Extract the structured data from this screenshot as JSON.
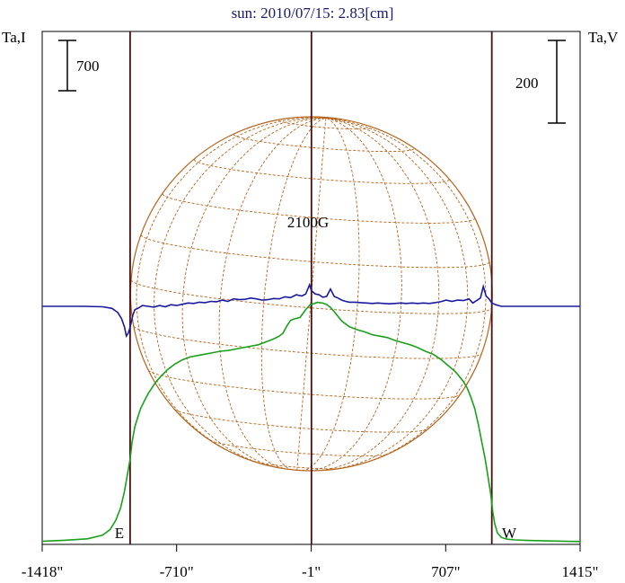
{
  "chart_data": {
    "type": "line",
    "title": "sun: 2010/07/15: 2.83[cm]",
    "left_axis_label": "Ta,I",
    "right_axis_label": "Ta,V",
    "left_scale_bar_label": "700",
    "right_scale_bar_label": "200",
    "field_label": "2100G",
    "east_label": "E",
    "west_label": "W",
    "x_tick_labels": [
      "-1418\"",
      "-710\"",
      "-1\"",
      "707\"",
      "1415\""
    ],
    "x_ticks": [
      -1418,
      -710,
      -1,
      707,
      1415
    ],
    "xlim": [
      -1418,
      1415
    ],
    "limb_arcsec": [
      -955,
      950
    ],
    "grid": false,
    "colors": {
      "intensity": "#1aa01a",
      "polarization": "#1a1aa0",
      "disk": "#b5651d",
      "limb_lines": "#4a1010",
      "axis": "#000000"
    },
    "series": [
      {
        "name": "Ta,I",
        "x": [
          -1418,
          -1300,
          -1180,
          -1100,
          -1060,
          -1030,
          -1005,
          -985,
          -970,
          -955,
          -945,
          -930,
          -915,
          -900,
          -880,
          -860,
          -840,
          -820,
          -800,
          -760,
          -720,
          -680,
          -640,
          -600,
          -560,
          -520,
          -480,
          -440,
          -400,
          -360,
          -320,
          -280,
          -240,
          -200,
          -170,
          -150,
          -130,
          -110,
          -90,
          -60,
          -30,
          -5,
          10,
          30,
          60,
          80,
          100,
          120,
          160,
          200,
          240,
          280,
          320,
          360,
          400,
          440,
          480,
          520,
          560,
          600,
          640,
          680,
          720,
          760,
          800,
          820,
          840,
          860,
          880,
          900,
          915,
          930,
          945,
          955,
          965,
          980,
          1000,
          1030,
          1070,
          1120,
          1180,
          1260,
          1340,
          1415
        ],
        "y": [
          5,
          20,
          40,
          90,
          170,
          300,
          470,
          700,
          920,
          1150,
          1380,
          1600,
          1730,
          1850,
          1960,
          2060,
          2140,
          2220,
          2280,
          2390,
          2470,
          2530,
          2570,
          2590,
          2610,
          2630,
          2650,
          2660,
          2680,
          2700,
          2720,
          2740,
          2780,
          2820,
          2860,
          2900,
          3000,
          3080,
          3100,
          3120,
          3230,
          3300,
          3310,
          3330,
          3320,
          3300,
          3260,
          3200,
          3070,
          2990,
          2950,
          2920,
          2880,
          2860,
          2840,
          2800,
          2770,
          2740,
          2700,
          2650,
          2610,
          2540,
          2450,
          2360,
          2230,
          2140,
          2010,
          1850,
          1620,
          1350,
          1150,
          900,
          650,
          420,
          250,
          120,
          60,
          35,
          25,
          20,
          15,
          10,
          5,
          3
        ]
      },
      {
        "name": "Ta,V",
        "x": [
          -1418,
          -1200,
          -1100,
          -1050,
          -1020,
          -1000,
          -985,
          -975,
          -965,
          -958,
          -950,
          -940,
          -930,
          -910,
          -890,
          -860,
          -830,
          -800,
          -770,
          -740,
          -710,
          -680,
          -650,
          -620,
          -590,
          -560,
          -530,
          -500,
          -470,
          -440,
          -410,
          -380,
          -350,
          -320,
          -290,
          -260,
          -230,
          -200,
          -170,
          -140,
          -110,
          -80,
          -50,
          -30,
          -10,
          0,
          20,
          40,
          60,
          80,
          100,
          120,
          140,
          160,
          180,
          200,
          230,
          260,
          290,
          320,
          350,
          380,
          410,
          440,
          470,
          500,
          530,
          560,
          590,
          620,
          650,
          680,
          710,
          740,
          770,
          800,
          830,
          850,
          870,
          890,
          905,
          920,
          935,
          950,
          960,
          970,
          985,
          1000,
          1020,
          1050,
          1100,
          1200,
          1300,
          1415
        ],
        "y": [
          0,
          0,
          -1,
          -5,
          -15,
          -30,
          -50,
          -72,
          -65,
          -55,
          -40,
          -20,
          -8,
          -4,
          2,
          0,
          -2,
          2,
          -1,
          4,
          2,
          5,
          8,
          7,
          10,
          9,
          12,
          11,
          15,
          12,
          18,
          16,
          17,
          20,
          18,
          15,
          16,
          19,
          18,
          23,
          21,
          28,
          25,
          30,
          52,
          38,
          30,
          28,
          22,
          24,
          42,
          24,
          20,
          15,
          12,
          10,
          10,
          9,
          8,
          7,
          8,
          7,
          6,
          7,
          8,
          7,
          8,
          7,
          8,
          7,
          9,
          11,
          15,
          12,
          15,
          14,
          18,
          8,
          14,
          20,
          48,
          25,
          18,
          8,
          6,
          4,
          2,
          0,
          0,
          0,
          0,
          0,
          0,
          0
        ]
      }
    ]
  }
}
